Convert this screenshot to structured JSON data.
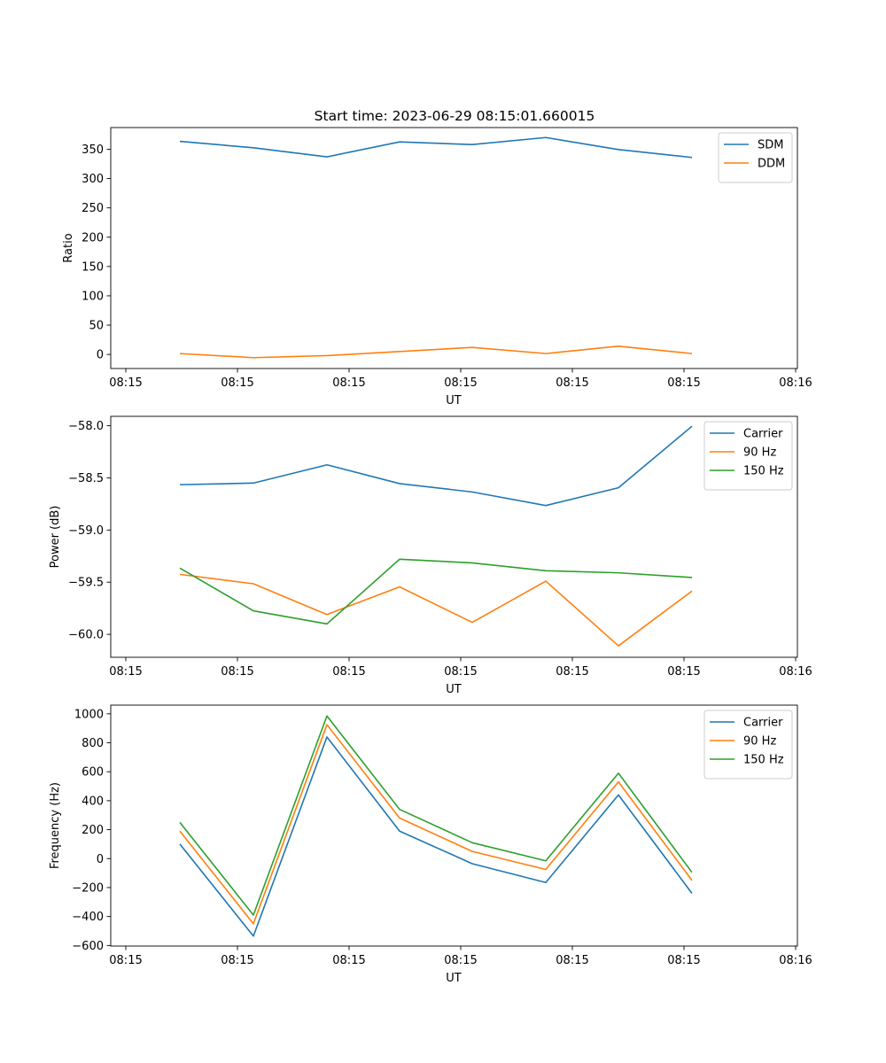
{
  "figure": {
    "title": "Start time: 2023-06-29 08:15:01.660015"
  },
  "chart_data": [
    {
      "type": "line",
      "title": "Start time: 2023-06-29 08:15:01.660015",
      "xlabel": "UT",
      "ylabel": "Ratio",
      "x_tick_labels": [
        "08:15",
        "08:15",
        "08:15",
        "08:15",
        "08:15",
        "08:15",
        "08:16"
      ],
      "y_ticks": [
        0,
        50,
        100,
        150,
        200,
        250,
        300,
        350
      ],
      "ylim": [
        -24,
        387
      ],
      "legend_position": "upper-right",
      "grid": false,
      "series": [
        {
          "name": "SDM",
          "color": "#1f77b4",
          "values": [
            363.5,
            352.5,
            337.0,
            362.5,
            358.0,
            370.0,
            349.5,
            336.0
          ]
        },
        {
          "name": "DDM",
          "color": "#ff7f0e",
          "values": [
            1.5,
            -5.5,
            -2.0,
            5.0,
            12.0,
            1.5,
            14.0,
            1.5
          ]
        }
      ]
    },
    {
      "type": "line",
      "xlabel": "UT",
      "ylabel": "Power (dB)",
      "x_tick_labels": [
        "08:15",
        "08:15",
        "08:15",
        "08:15",
        "08:15",
        "08:15",
        "08:16"
      ],
      "y_ticks": [
        -60.0,
        -59.5,
        -59.0,
        -58.5,
        -58.0
      ],
      "y_tick_labels": [
        "−60.0",
        "−59.5",
        "−59.0",
        "−58.5",
        "−58.0"
      ],
      "ylim": [
        -60.22,
        -57.91
      ],
      "legend_position": "upper-right",
      "grid": false,
      "series": [
        {
          "name": "Carrier",
          "color": "#1f77b4",
          "values": [
            -58.565,
            -58.55,
            -58.375,
            -58.555,
            -58.635,
            -58.765,
            -58.595,
            -58.005
          ]
        },
        {
          "name": "90 Hz",
          "color": "#ff7f0e",
          "values": [
            -59.425,
            -59.515,
            -59.81,
            -59.545,
            -59.885,
            -59.49,
            -60.11,
            -59.585
          ]
        },
        {
          "name": "150 Hz",
          "color": "#2ca02c",
          "values": [
            -59.365,
            -59.775,
            -59.9,
            -59.28,
            -59.315,
            -59.39,
            -59.41,
            -59.455
          ]
        }
      ]
    },
    {
      "type": "line",
      "xlabel": "UT",
      "ylabel": "Frequency (Hz)",
      "x_tick_labels": [
        "08:15",
        "08:15",
        "08:15",
        "08:15",
        "08:15",
        "08:15",
        "08:16"
      ],
      "y_ticks": [
        -600,
        -400,
        -200,
        0,
        200,
        400,
        600,
        800,
        1000
      ],
      "y_tick_labels": [
        "−600",
        "−400",
        "−200",
        "0",
        "200",
        "400",
        "600",
        "800",
        "1000"
      ],
      "ylim": [
        -604,
        1060
      ],
      "legend_position": "upper-right",
      "grid": false,
      "series": [
        {
          "name": "Carrier",
          "color": "#1f77b4",
          "values": [
            100,
            -535,
            840,
            190,
            -35,
            -165,
            440,
            -240
          ]
        },
        {
          "name": "90 Hz",
          "color": "#ff7f0e",
          "values": [
            190,
            -450,
            925,
            280,
            50,
            -75,
            530,
            -150
          ]
        },
        {
          "name": "150 Hz",
          "color": "#2ca02c",
          "values": [
            250,
            -390,
            985,
            340,
            110,
            -15,
            590,
            -95
          ]
        }
      ]
    }
  ]
}
